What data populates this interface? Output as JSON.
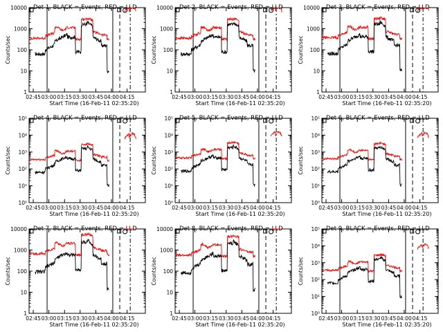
{
  "figure": {
    "xlabel": "Start Time (16-Feb-11 02:35:20)",
    "ylabel": "Counts/sec",
    "x_tick_labels": [
      "02:45",
      "03:00",
      "03:15",
      "03:30",
      "03:45",
      "04:00",
      "04:15"
    ],
    "colors": {
      "events": "#000000",
      "lld": "#ff0000",
      "axes": "#000000"
    }
  },
  "chart_data": [
    {
      "type": "line",
      "title": "Det 1, BLACK = Events, RED = LLD",
      "ylim": [
        1,
        10000
      ],
      "y_tick_labels": [
        "1",
        "10",
        "100",
        "1000",
        "10000"
      ],
      "y_log": true,
      "series": [
        {
          "name": "Events",
          "color": "#000000"
        },
        {
          "name": "LLD",
          "color": "#ff0000"
        }
      ]
    },
    {
      "type": "line",
      "title": "Det 2, BLACK = Events, RED = LLD",
      "ylim": [
        1,
        10000
      ],
      "y_tick_labels": [
        "1",
        "10",
        "100",
        "1000",
        "10000"
      ],
      "y_log": true,
      "series": [
        {
          "name": "Events",
          "color": "#000000"
        },
        {
          "name": "LLD",
          "color": "#ff0000"
        }
      ]
    },
    {
      "type": "line",
      "title": "Det 3, BLACK = Events, RED = LLD",
      "ylim": [
        1,
        10000
      ],
      "y_tick_labels": [
        "1",
        "10",
        "100",
        "1000",
        "10000"
      ],
      "y_log": true,
      "series": [
        {
          "name": "Events",
          "color": "#000000"
        },
        {
          "name": "LLD",
          "color": "#ff0000"
        }
      ]
    },
    {
      "type": "line",
      "title": "Det 4, BLACK = Events, RED = LLD",
      "ylim": [
        1,
        100000
      ],
      "y_tick_labels": [
        "10⁰",
        "10¹",
        "10²",
        "10³",
        "10⁴",
        "10⁵"
      ],
      "y_log": true,
      "series": [
        {
          "name": "Events",
          "color": "#000000"
        },
        {
          "name": "LLD",
          "color": "#ff0000"
        }
      ]
    },
    {
      "type": "line",
      "title": "Det 5, BLACK = Events, RED = LLD",
      "ylim": [
        1,
        100000
      ],
      "y_tick_labels": [
        "10⁰",
        "10¹",
        "10²",
        "10³",
        "10⁴",
        "10⁵"
      ],
      "y_log": true,
      "series": [
        {
          "name": "Events",
          "color": "#000000"
        },
        {
          "name": "LLD",
          "color": "#ff0000"
        }
      ]
    },
    {
      "type": "line",
      "title": "Det 6, BLACK = Events, RED = LLD",
      "ylim": [
        1,
        100000
      ],
      "y_tick_labels": [
        "10⁰",
        "10¹",
        "10²",
        "10³",
        "10⁴",
        "10⁵"
      ],
      "y_log": true,
      "series": [
        {
          "name": "Events",
          "color": "#000000"
        },
        {
          "name": "LLD",
          "color": "#ff0000"
        }
      ]
    },
    {
      "type": "line",
      "title": "Det 7, BLACK = Events, RED = LLD",
      "ylim": [
        1,
        10000
      ],
      "y_tick_labels": [
        "1",
        "10",
        "100",
        "1000",
        "10000"
      ],
      "y_log": true,
      "series": [
        {
          "name": "Events",
          "color": "#000000"
        },
        {
          "name": "LLD",
          "color": "#ff0000"
        }
      ]
    },
    {
      "type": "line",
      "title": "Det 8, BLACK = Events, RED = LLD",
      "ylim": [
        1,
        10000
      ],
      "y_tick_labels": [
        "1",
        "10",
        "100",
        "1000",
        "10000"
      ],
      "y_log": true,
      "series": [
        {
          "name": "Events",
          "color": "#000000"
        },
        {
          "name": "LLD",
          "color": "#ff0000"
        }
      ]
    },
    {
      "type": "line",
      "title": "Det 9, BLACK = Events, RED = LLD",
      "ylim": [
        1,
        100000
      ],
      "y_tick_labels": [
        "10⁰",
        "10¹",
        "10²",
        "10³",
        "10⁴",
        "10⁵"
      ],
      "y_log": true,
      "series": [
        {
          "name": "Events",
          "color": "#000000"
        },
        {
          "name": "LLD",
          "color": "#ff0000"
        }
      ]
    }
  ]
}
